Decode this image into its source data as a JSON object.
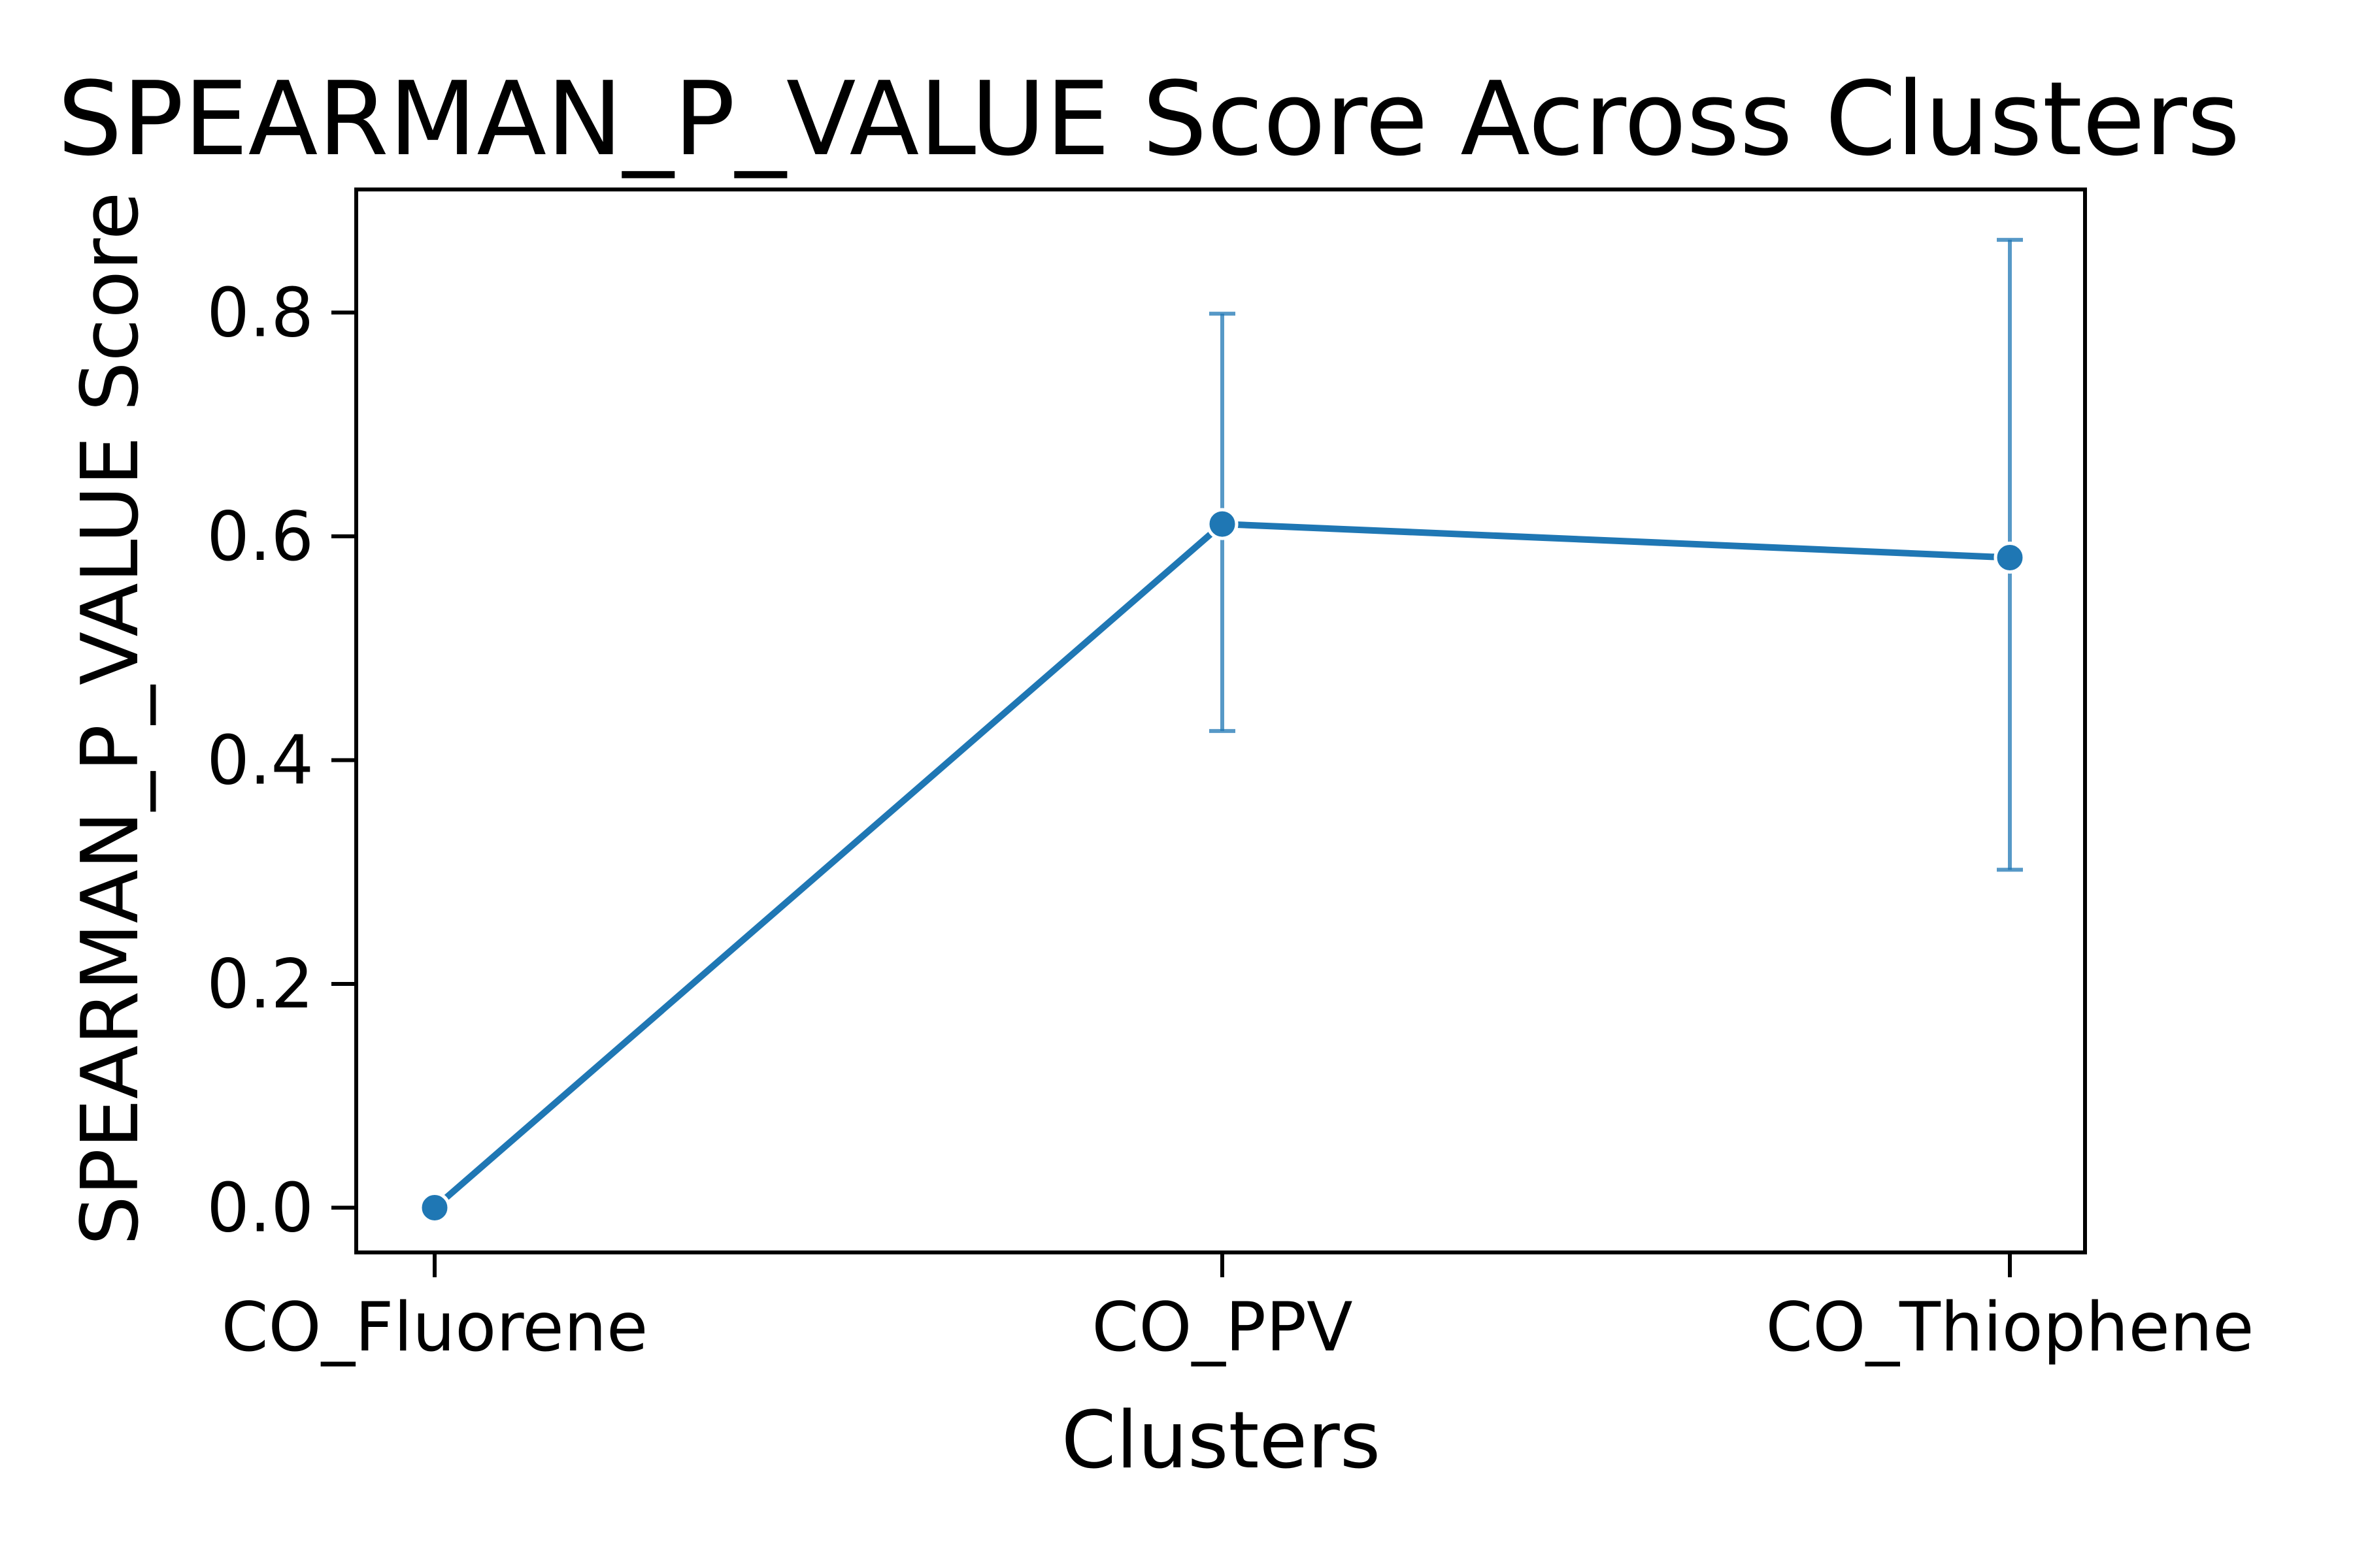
{
  "chart_data": {
    "type": "line",
    "title": "SPEARMAN_P_VALUE Score Across Clusters",
    "xlabel": "Clusters",
    "ylabel": "SPEARMAN_P_VALUE Score",
    "categories": [
      "CO_Fluorene",
      "CO_PPV",
      "CO_Thiophene"
    ],
    "series": [
      {
        "values": [
          0.0,
          0.611,
          0.581
        ],
        "error_low": [
          0.0,
          0.426,
          0.302
        ],
        "error_high": [
          0.0,
          0.799,
          0.865
        ],
        "color": "#1f77b4"
      }
    ],
    "yticks": [
      "0.0",
      "0.2",
      "0.4",
      "0.6",
      "0.8"
    ],
    "ylim": [
      -0.04,
      0.91
    ],
    "grid": false,
    "legend": "none"
  }
}
